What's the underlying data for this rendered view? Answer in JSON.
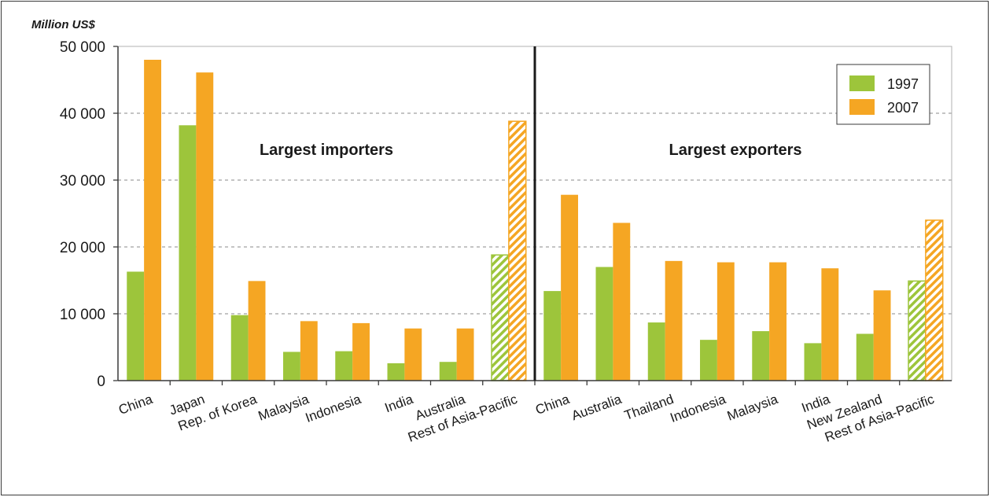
{
  "chart_data": {
    "type": "bar",
    "unit_label": "Million US$",
    "ylim": [
      0,
      50000
    ],
    "yticks": [
      0,
      10000,
      20000,
      30000,
      40000,
      50000
    ],
    "ytick_labels": [
      "0",
      "10 000",
      "20 000",
      "30 000",
      "40 000",
      "50 000"
    ],
    "grid": "horizontal dashed",
    "legend_position": "top-right",
    "series": [
      {
        "name": "1997",
        "color": "#9dc53b"
      },
      {
        "name": "2007",
        "color": "#f5a623"
      }
    ],
    "panels": [
      {
        "title": "Largest importers",
        "categories": [
          "China",
          "Japan",
          "Rep. of Korea",
          "Malaysia",
          "Indonesia",
          "India",
          "Australia",
          "Rest of Asia-Pacific"
        ],
        "values_1997": [
          16300,
          38200,
          9800,
          4300,
          4400,
          2600,
          2800,
          18800
        ],
        "values_2007": [
          48000,
          46100,
          14900,
          8900,
          8600,
          7800,
          7800,
          38800
        ],
        "hatched_categories": [
          "Rest of Asia-Pacific"
        ]
      },
      {
        "title": "Largest exporters",
        "categories": [
          "China",
          "Australia",
          "Thailand",
          "Indonesia",
          "Malaysia",
          "India",
          "New Zealand",
          "Rest of Asia-Pacific"
        ],
        "values_1997": [
          13400,
          17000,
          8700,
          6100,
          7400,
          5600,
          7000,
          14900
        ],
        "values_2007": [
          27800,
          23600,
          17900,
          17700,
          17700,
          16800,
          13500,
          24000
        ],
        "hatched_categories": [
          "Rest of Asia-Pacific"
        ]
      }
    ]
  }
}
